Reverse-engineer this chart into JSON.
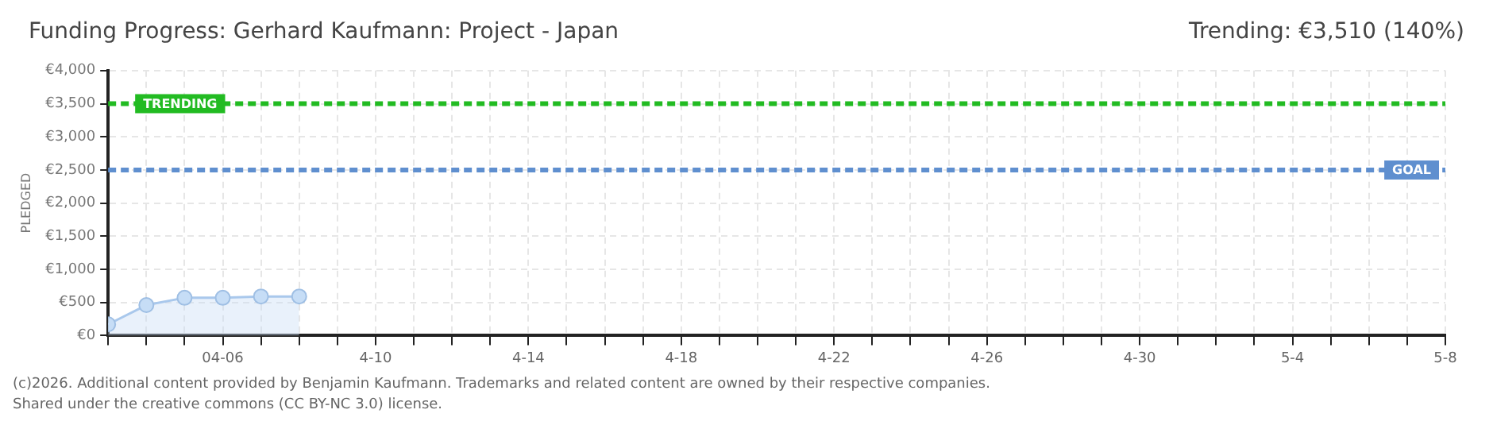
{
  "chart_data": {
    "type": "area",
    "title": "Funding Progress: Gerhard Kaufmann: Project - Japan",
    "ylabel": "PLEDGED",
    "annotations": [
      "Trending:  €3,510 (140%)",
      "(c)2026. Additional content provided by Benjamin Kaufmann. Trademarks and related content are owned by their respective companies.",
      "Shared under the creative commons (CC BY-NC 3.0) license."
    ],
    "x": [
      "--04-03",
      "--04-04",
      "--04-05",
      "--04-06",
      "--04-07",
      "--04-08"
    ],
    "series": [
      {
        "color": "#a9c8ec",
        "values": [
          170,
          460,
          570,
          570,
          590,
          590
        ]
      }
    ],
    "xlim": [
      "--04-03",
      "--05-08"
    ],
    "xticks": [
      {
        "value": "--04-03",
        "label": null
      },
      {
        "value": "--04-04",
        "label": null
      },
      {
        "value": "--04-05",
        "label": null
      },
      {
        "value": "--04-06",
        "label": "04-06"
      },
      {
        "value": "--04-07",
        "label": null
      },
      {
        "value": "--04-08",
        "label": null
      },
      {
        "value": "--04-09",
        "label": null
      },
      {
        "value": "--04-10",
        "label": "4-10"
      },
      {
        "value": "--04-11",
        "label": null
      },
      {
        "value": "--04-12",
        "label": null
      },
      {
        "value": "--04-13",
        "label": null
      },
      {
        "value": "--04-14",
        "label": "4-14"
      },
      {
        "value": "--04-15",
        "label": null
      },
      {
        "value": "--04-16",
        "label": null
      },
      {
        "value": "--04-17",
        "label": null
      },
      {
        "value": "--04-18",
        "label": "4-18"
      },
      {
        "value": "--04-19",
        "label": null
      },
      {
        "value": "--04-20",
        "label": null
      },
      {
        "value": "--04-21",
        "label": null
      },
      {
        "value": "--04-22",
        "label": "4-22"
      },
      {
        "value": "--04-23",
        "label": null
      },
      {
        "value": "--04-24",
        "label": null
      },
      {
        "value": "--04-25",
        "label": null
      },
      {
        "value": "--04-26",
        "label": "4-26"
      },
      {
        "value": "--04-27",
        "label": null
      },
      {
        "value": "--04-28",
        "label": null
      },
      {
        "value": "--04-29",
        "label": null
      },
      {
        "value": "--04-30",
        "label": "4-30"
      },
      {
        "value": "--05-01",
        "label": null
      },
      {
        "value": "--05-02",
        "label": null
      },
      {
        "value": "--05-03",
        "label": null
      },
      {
        "value": "--05-04",
        "label": "5-4"
      },
      {
        "value": "--05-05",
        "label": null
      },
      {
        "value": "--05-06",
        "label": null
      },
      {
        "value": "--05-07",
        "label": null
      },
      {
        "value": "--05-08",
        "label": "5-8"
      }
    ],
    "ylim": [
      0,
      4000
    ],
    "yticks": [
      {
        "value": 0,
        "label": "€0"
      },
      {
        "value": 500,
        "label": "€500"
      },
      {
        "value": 1000,
        "label": "€1,000"
      },
      {
        "value": 1500,
        "label": "€1,500"
      },
      {
        "value": 2000,
        "label": "€2,000"
      },
      {
        "value": 2500,
        "label": "€2,500"
      },
      {
        "value": 3000,
        "label": "€3,000"
      },
      {
        "value": 3500,
        "label": "€3,500"
      },
      {
        "value": 4000,
        "label": "€4,000"
      }
    ],
    "ref_lines": [
      {
        "axis": "y",
        "value": 3500,
        "label": "TRENDING",
        "color": "#22bb22",
        "line_style": "dashed"
      },
      {
        "axis": "y",
        "value": 2500,
        "label": "GOAL",
        "color": "#5f8fcf",
        "line_style": "dashed"
      }
    ],
    "grid": true,
    "legend": false,
    "marker": "circle",
    "line_style": "solid"
  }
}
